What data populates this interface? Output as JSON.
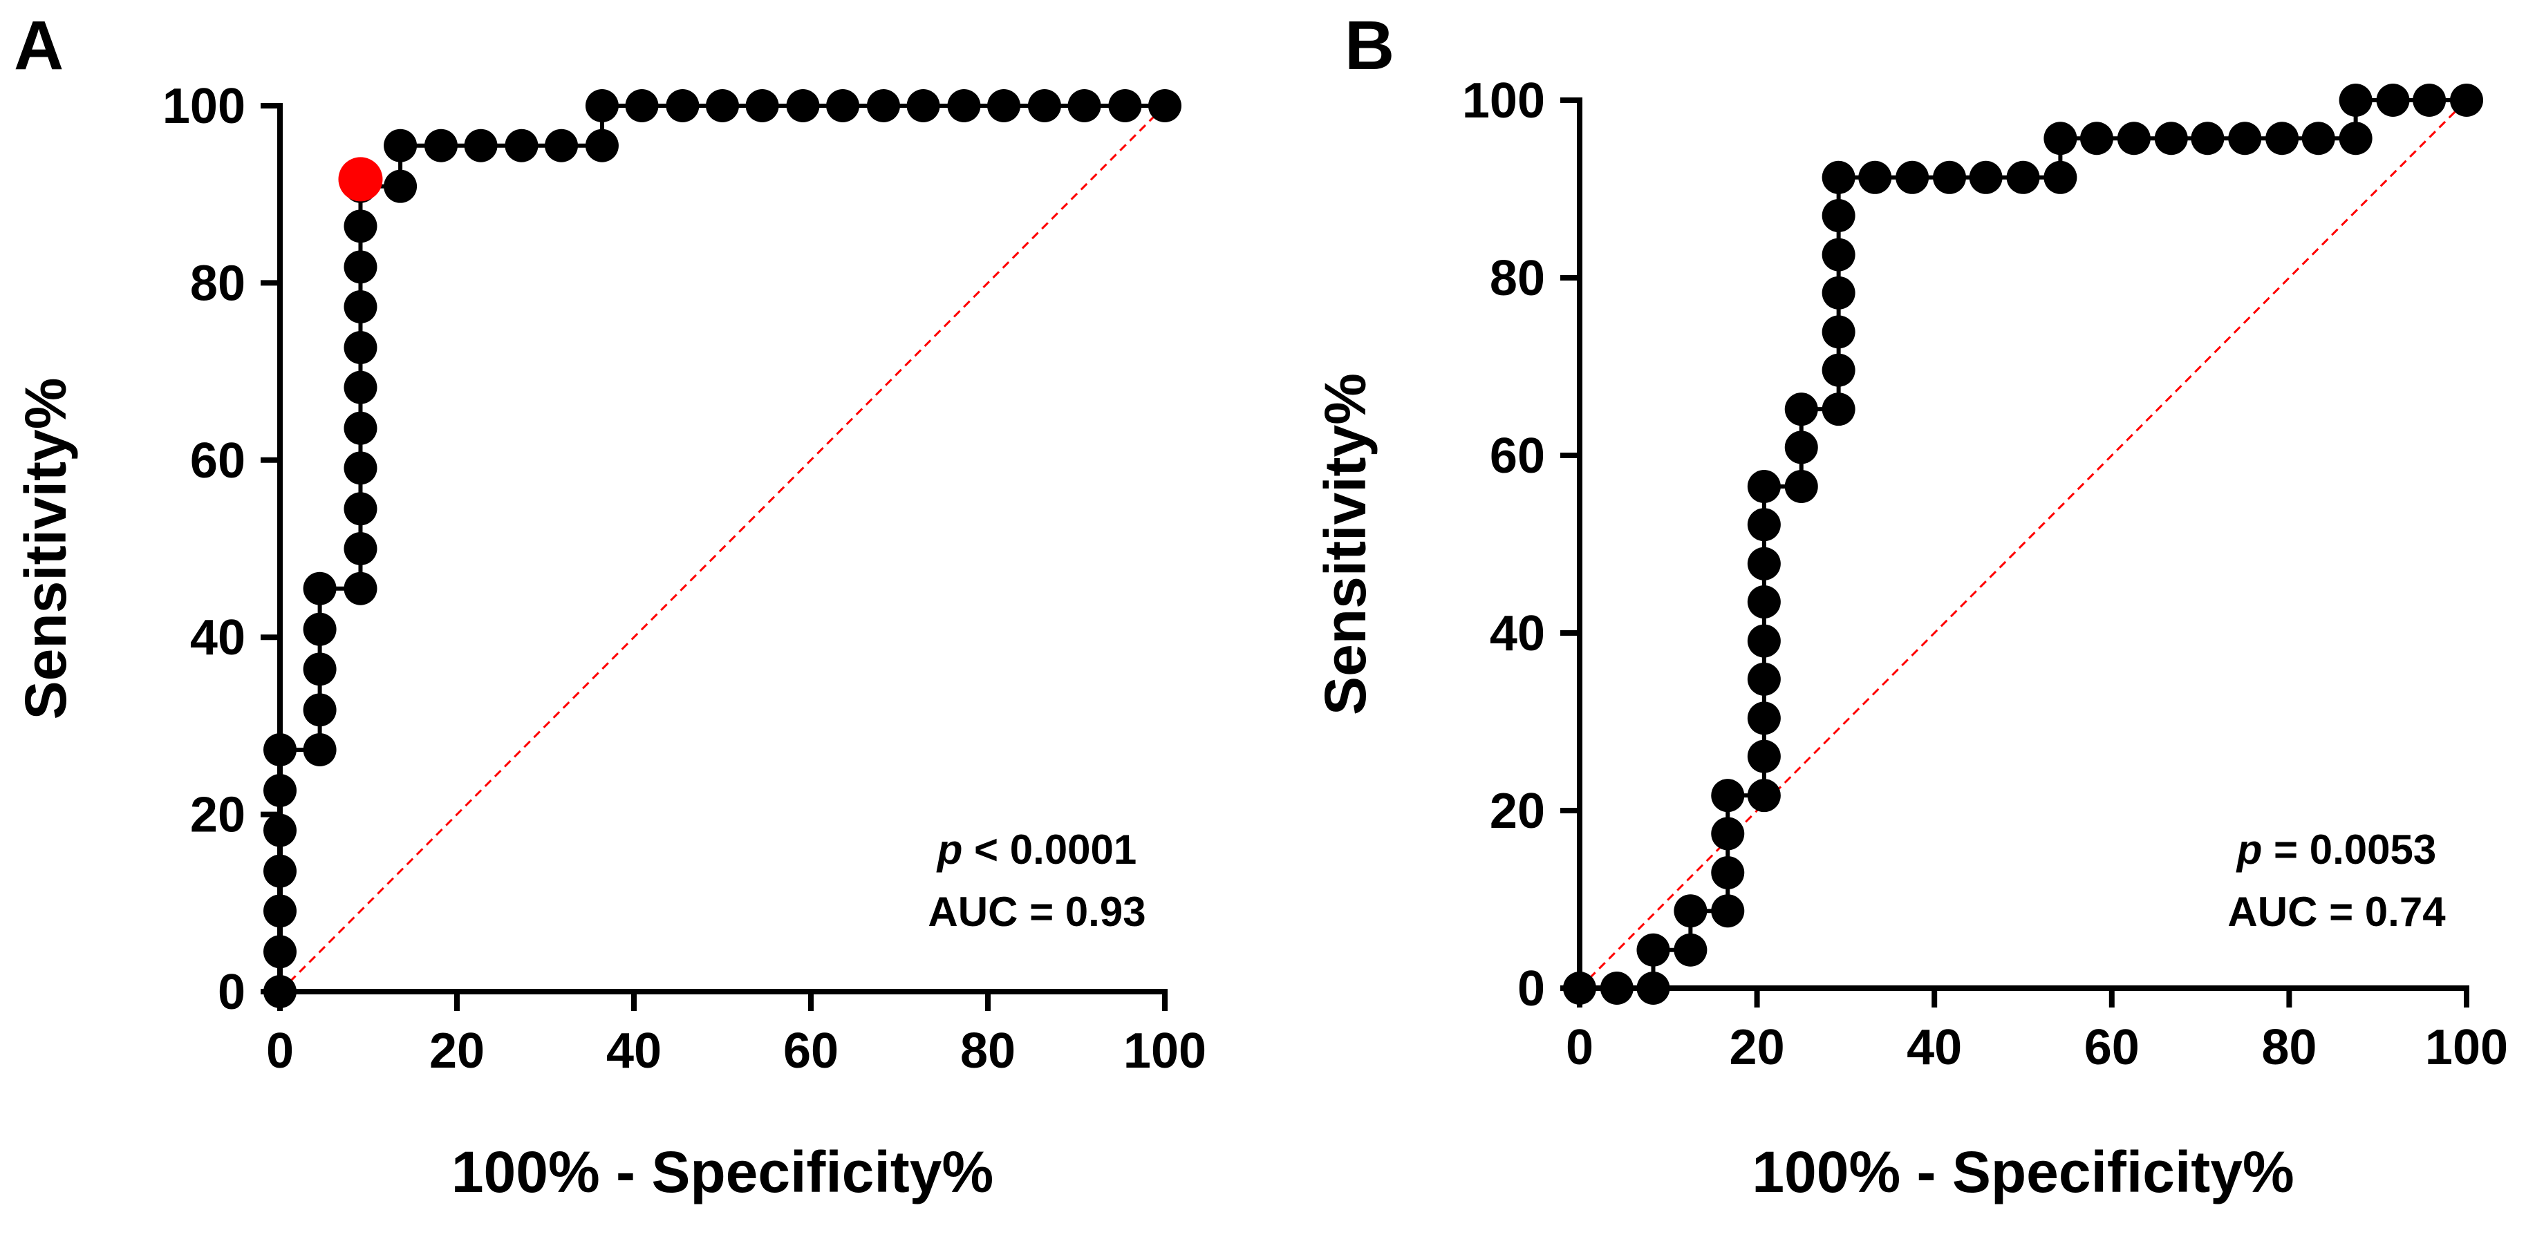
{
  "colors": {
    "points": "#000000",
    "highlight": "#ff0000",
    "reference_line": "#ff0000",
    "axis": "#000000"
  },
  "chart_data": [
    {
      "type": "scatter",
      "panel_label": "A",
      "xlabel": "100% - Specificity%",
      "ylabel": "Sensitivity%",
      "xlim": [
        0,
        100
      ],
      "ylim": [
        0,
        100
      ],
      "xticks": [
        0,
        20,
        40,
        60,
        80,
        100
      ],
      "yticks": [
        0,
        20,
        40,
        60,
        80,
        100
      ],
      "grid": false,
      "reference_line": {
        "from": [
          0,
          0
        ],
        "to": [
          100,
          100
        ],
        "style": "dashed"
      },
      "annotation": {
        "p_label": "p",
        "p_rest": " < 0.0001",
        "auc": "AUC = 0.93"
      },
      "series": [
        {
          "style": "line-with-markers",
          "points": [
            [
              0,
              0
            ],
            [
              0,
              4.5
            ],
            [
              0,
              9.1
            ],
            [
              0,
              13.6
            ],
            [
              0,
              18.2
            ],
            [
              0,
              22.7
            ],
            [
              0,
              27.3
            ],
            [
              4.5,
              27.3
            ],
            [
              4.5,
              31.8
            ],
            [
              4.5,
              36.4
            ],
            [
              4.5,
              40.9
            ],
            [
              4.5,
              45.5
            ],
            [
              9.1,
              45.5
            ],
            [
              9.1,
              50
            ],
            [
              9.1,
              54.5
            ],
            [
              9.1,
              59.1
            ],
            [
              9.1,
              63.6
            ],
            [
              9.1,
              68.2
            ],
            [
              9.1,
              72.7
            ],
            [
              9.1,
              77.3
            ],
            [
              9.1,
              81.8
            ],
            [
              9.1,
              86.4
            ],
            [
              9.1,
              90.9
            ],
            [
              13.6,
              90.9
            ],
            [
              13.6,
              95.5
            ],
            [
              18.2,
              95.5
            ],
            [
              22.7,
              95.5
            ],
            [
              27.3,
              95.5
            ],
            [
              31.8,
              95.5
            ],
            [
              36.4,
              95.5
            ],
            [
              36.4,
              100
            ],
            [
              40.9,
              100
            ],
            [
              45.5,
              100
            ],
            [
              50,
              100
            ],
            [
              54.5,
              100
            ],
            [
              59.1,
              100
            ],
            [
              63.6,
              100
            ],
            [
              68.2,
              100
            ],
            [
              72.7,
              100
            ],
            [
              77.3,
              100
            ],
            [
              81.8,
              100
            ],
            [
              86.4,
              100
            ],
            [
              90.9,
              100
            ],
            [
              95.5,
              100
            ],
            [
              100,
              100
            ]
          ]
        }
      ],
      "highlight_point": [
        9.1,
        91.7
      ]
    },
    {
      "type": "scatter",
      "panel_label": "B",
      "xlabel": "100% - Specificity%",
      "ylabel": "Sensitivity%",
      "xlim": [
        0,
        100
      ],
      "ylim": [
        0,
        100
      ],
      "xticks": [
        0,
        20,
        40,
        60,
        80,
        100
      ],
      "yticks": [
        0,
        20,
        40,
        60,
        80,
        100
      ],
      "grid": false,
      "reference_line": {
        "from": [
          0,
          0
        ],
        "to": [
          100,
          100
        ],
        "style": "dashed"
      },
      "annotation": {
        "p_label": "p",
        "p_rest": " = 0.0053",
        "auc": "AUC = 0.74"
      },
      "series": [
        {
          "style": "line-with-markers",
          "points": [
            [
              0,
              0
            ],
            [
              4.2,
              0
            ],
            [
              8.3,
              0
            ],
            [
              8.3,
              4.3
            ],
            [
              12.5,
              4.3
            ],
            [
              12.5,
              8.7
            ],
            [
              16.7,
              8.7
            ],
            [
              16.7,
              13
            ],
            [
              16.7,
              17.4
            ],
            [
              16.7,
              21.7
            ],
            [
              20.8,
              21.7
            ],
            [
              20.8,
              26.1
            ],
            [
              20.8,
              30.4
            ],
            [
              20.8,
              34.8
            ],
            [
              20.8,
              39.1
            ],
            [
              20.8,
              43.5
            ],
            [
              20.8,
              47.8
            ],
            [
              20.8,
              52.2
            ],
            [
              20.8,
              56.5
            ],
            [
              25,
              56.5
            ],
            [
              25,
              60.9
            ],
            [
              25,
              65.2
            ],
            [
              29.2,
              65.2
            ],
            [
              29.2,
              69.6
            ],
            [
              29.2,
              73.9
            ],
            [
              29.2,
              78.3
            ],
            [
              29.2,
              82.6
            ],
            [
              29.2,
              87
            ],
            [
              29.2,
              91.3
            ],
            [
              33.3,
              91.3
            ],
            [
              37.5,
              91.3
            ],
            [
              41.7,
              91.3
            ],
            [
              45.8,
              91.3
            ],
            [
              50,
              91.3
            ],
            [
              54.2,
              91.3
            ],
            [
              54.2,
              95.7
            ],
            [
              58.3,
              95.7
            ],
            [
              62.5,
              95.7
            ],
            [
              66.7,
              95.7
            ],
            [
              70.8,
              95.7
            ],
            [
              75,
              95.7
            ],
            [
              79.2,
              95.7
            ],
            [
              83.3,
              95.7
            ],
            [
              87.5,
              95.7
            ],
            [
              87.5,
              100
            ],
            [
              91.7,
              100
            ],
            [
              95.8,
              100
            ],
            [
              100,
              100
            ]
          ]
        }
      ]
    }
  ]
}
